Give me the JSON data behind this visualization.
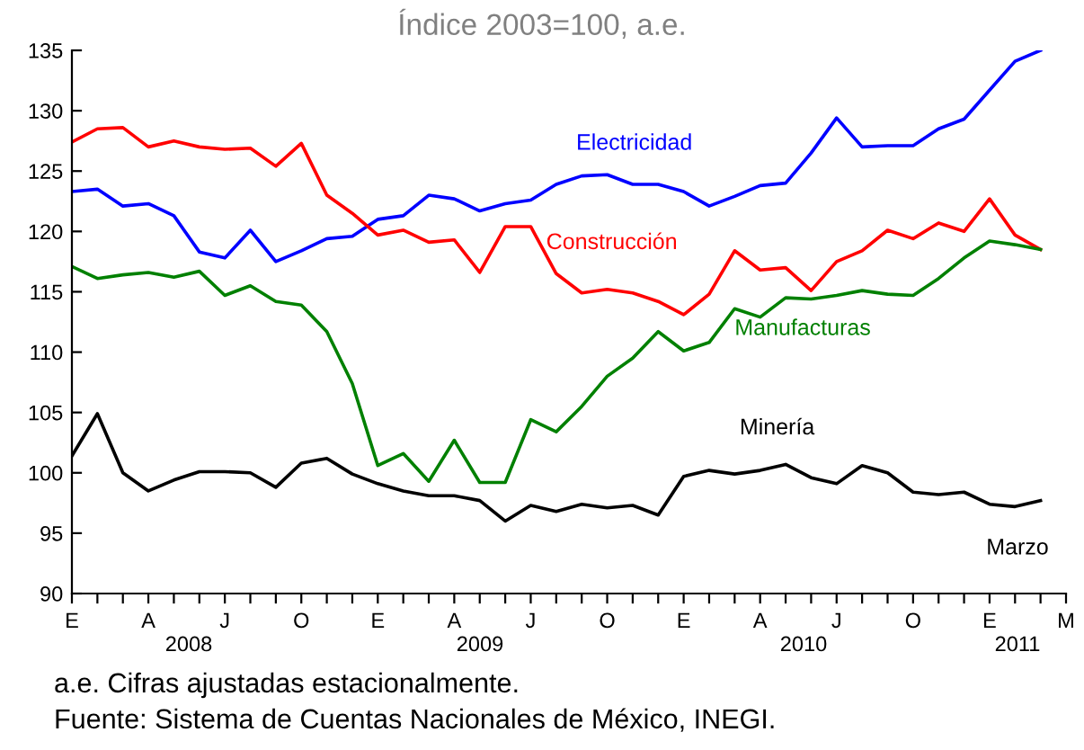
{
  "chart_data": {
    "type": "line",
    "title": "Índice 2003=100, a.e.",
    "categories": [
      "E",
      null,
      null,
      "A",
      null,
      null,
      "J",
      null,
      null,
      "O",
      null,
      null,
      "E",
      null,
      null,
      "A",
      null,
      null,
      "J",
      null,
      null,
      "O",
      null,
      null,
      "E",
      null,
      null,
      "A",
      null,
      null,
      "J",
      null,
      null,
      "O",
      null,
      null,
      "E",
      null,
      null,
      "M"
    ],
    "series": [
      {
        "name": "Electricidad",
        "color": "#0000ff",
        "values": [
          123.3,
          123.5,
          122.1,
          122.3,
          121.3,
          118.3,
          117.8,
          120.1,
          117.5,
          118.4,
          119.4,
          119.6,
          121.0,
          121.3,
          123.0,
          122.7,
          121.7,
          122.3,
          122.6,
          123.9,
          124.6,
          124.7,
          123.9,
          123.9,
          123.3,
          122.1,
          122.9,
          123.8,
          124.0,
          126.5,
          129.4,
          127.0,
          127.1,
          127.1,
          128.5,
          129.3,
          131.7,
          134.1,
          135.0,
          null
        ]
      },
      {
        "name": "Construcción",
        "color": "#ff0000",
        "values": [
          127.4,
          128.5,
          128.6,
          127.0,
          127.5,
          127.0,
          126.8,
          126.9,
          125.4,
          127.3,
          123.0,
          121.5,
          119.7,
          120.1,
          119.1,
          119.3,
          116.6,
          120.4,
          120.4,
          116.5,
          114.9,
          115.2,
          114.9,
          114.2,
          113.1,
          114.8,
          118.4,
          116.8,
          117.0,
          115.1,
          117.5,
          118.4,
          120.1,
          119.4,
          120.7,
          120.0,
          122.7,
          119.7,
          118.5,
          null
        ]
      },
      {
        "name": "Manufacturas",
        "color": "#008000",
        "values": [
          117.1,
          116.1,
          116.4,
          116.6,
          116.2,
          116.7,
          114.7,
          115.5,
          114.2,
          113.9,
          111.7,
          107.4,
          100.6,
          101.6,
          99.3,
          102.7,
          99.2,
          99.2,
          104.4,
          103.4,
          105.5,
          108.0,
          109.5,
          111.7,
          110.1,
          110.8,
          113.6,
          112.9,
          114.5,
          114.4,
          114.7,
          115.1,
          114.8,
          114.7,
          116.1,
          117.8,
          119.2,
          118.9,
          118.5,
          null
        ]
      },
      {
        "name": "Minería",
        "color": "#000000",
        "values": [
          101.4,
          104.9,
          100.0,
          98.5,
          99.4,
          100.1,
          100.1,
          100.0,
          98.8,
          100.8,
          101.2,
          99.9,
          99.1,
          98.5,
          98.1,
          98.1,
          97.7,
          96.0,
          97.3,
          96.8,
          97.4,
          97.1,
          97.3,
          96.5,
          99.7,
          100.2,
          99.9,
          100.2,
          100.7,
          99.6,
          99.1,
          100.6,
          100.0,
          98.4,
          98.2,
          98.4,
          97.4,
          97.2,
          97.7,
          null
        ]
      }
    ],
    "ylim": [
      90,
      135
    ],
    "yticks": [
      90,
      95,
      100,
      105,
      110,
      115,
      120,
      125,
      130,
      135
    ],
    "annotations": [
      "2008",
      "2009",
      "2010",
      "2011",
      "Marzo",
      "a.e. Cifras ajustadas estacionalmente.",
      "Fuente: Sistema de Cuentas Nacionales de México, INEGI."
    ],
    "grid": false,
    "legend": false,
    "marker": "none",
    "line_style": "solid"
  }
}
